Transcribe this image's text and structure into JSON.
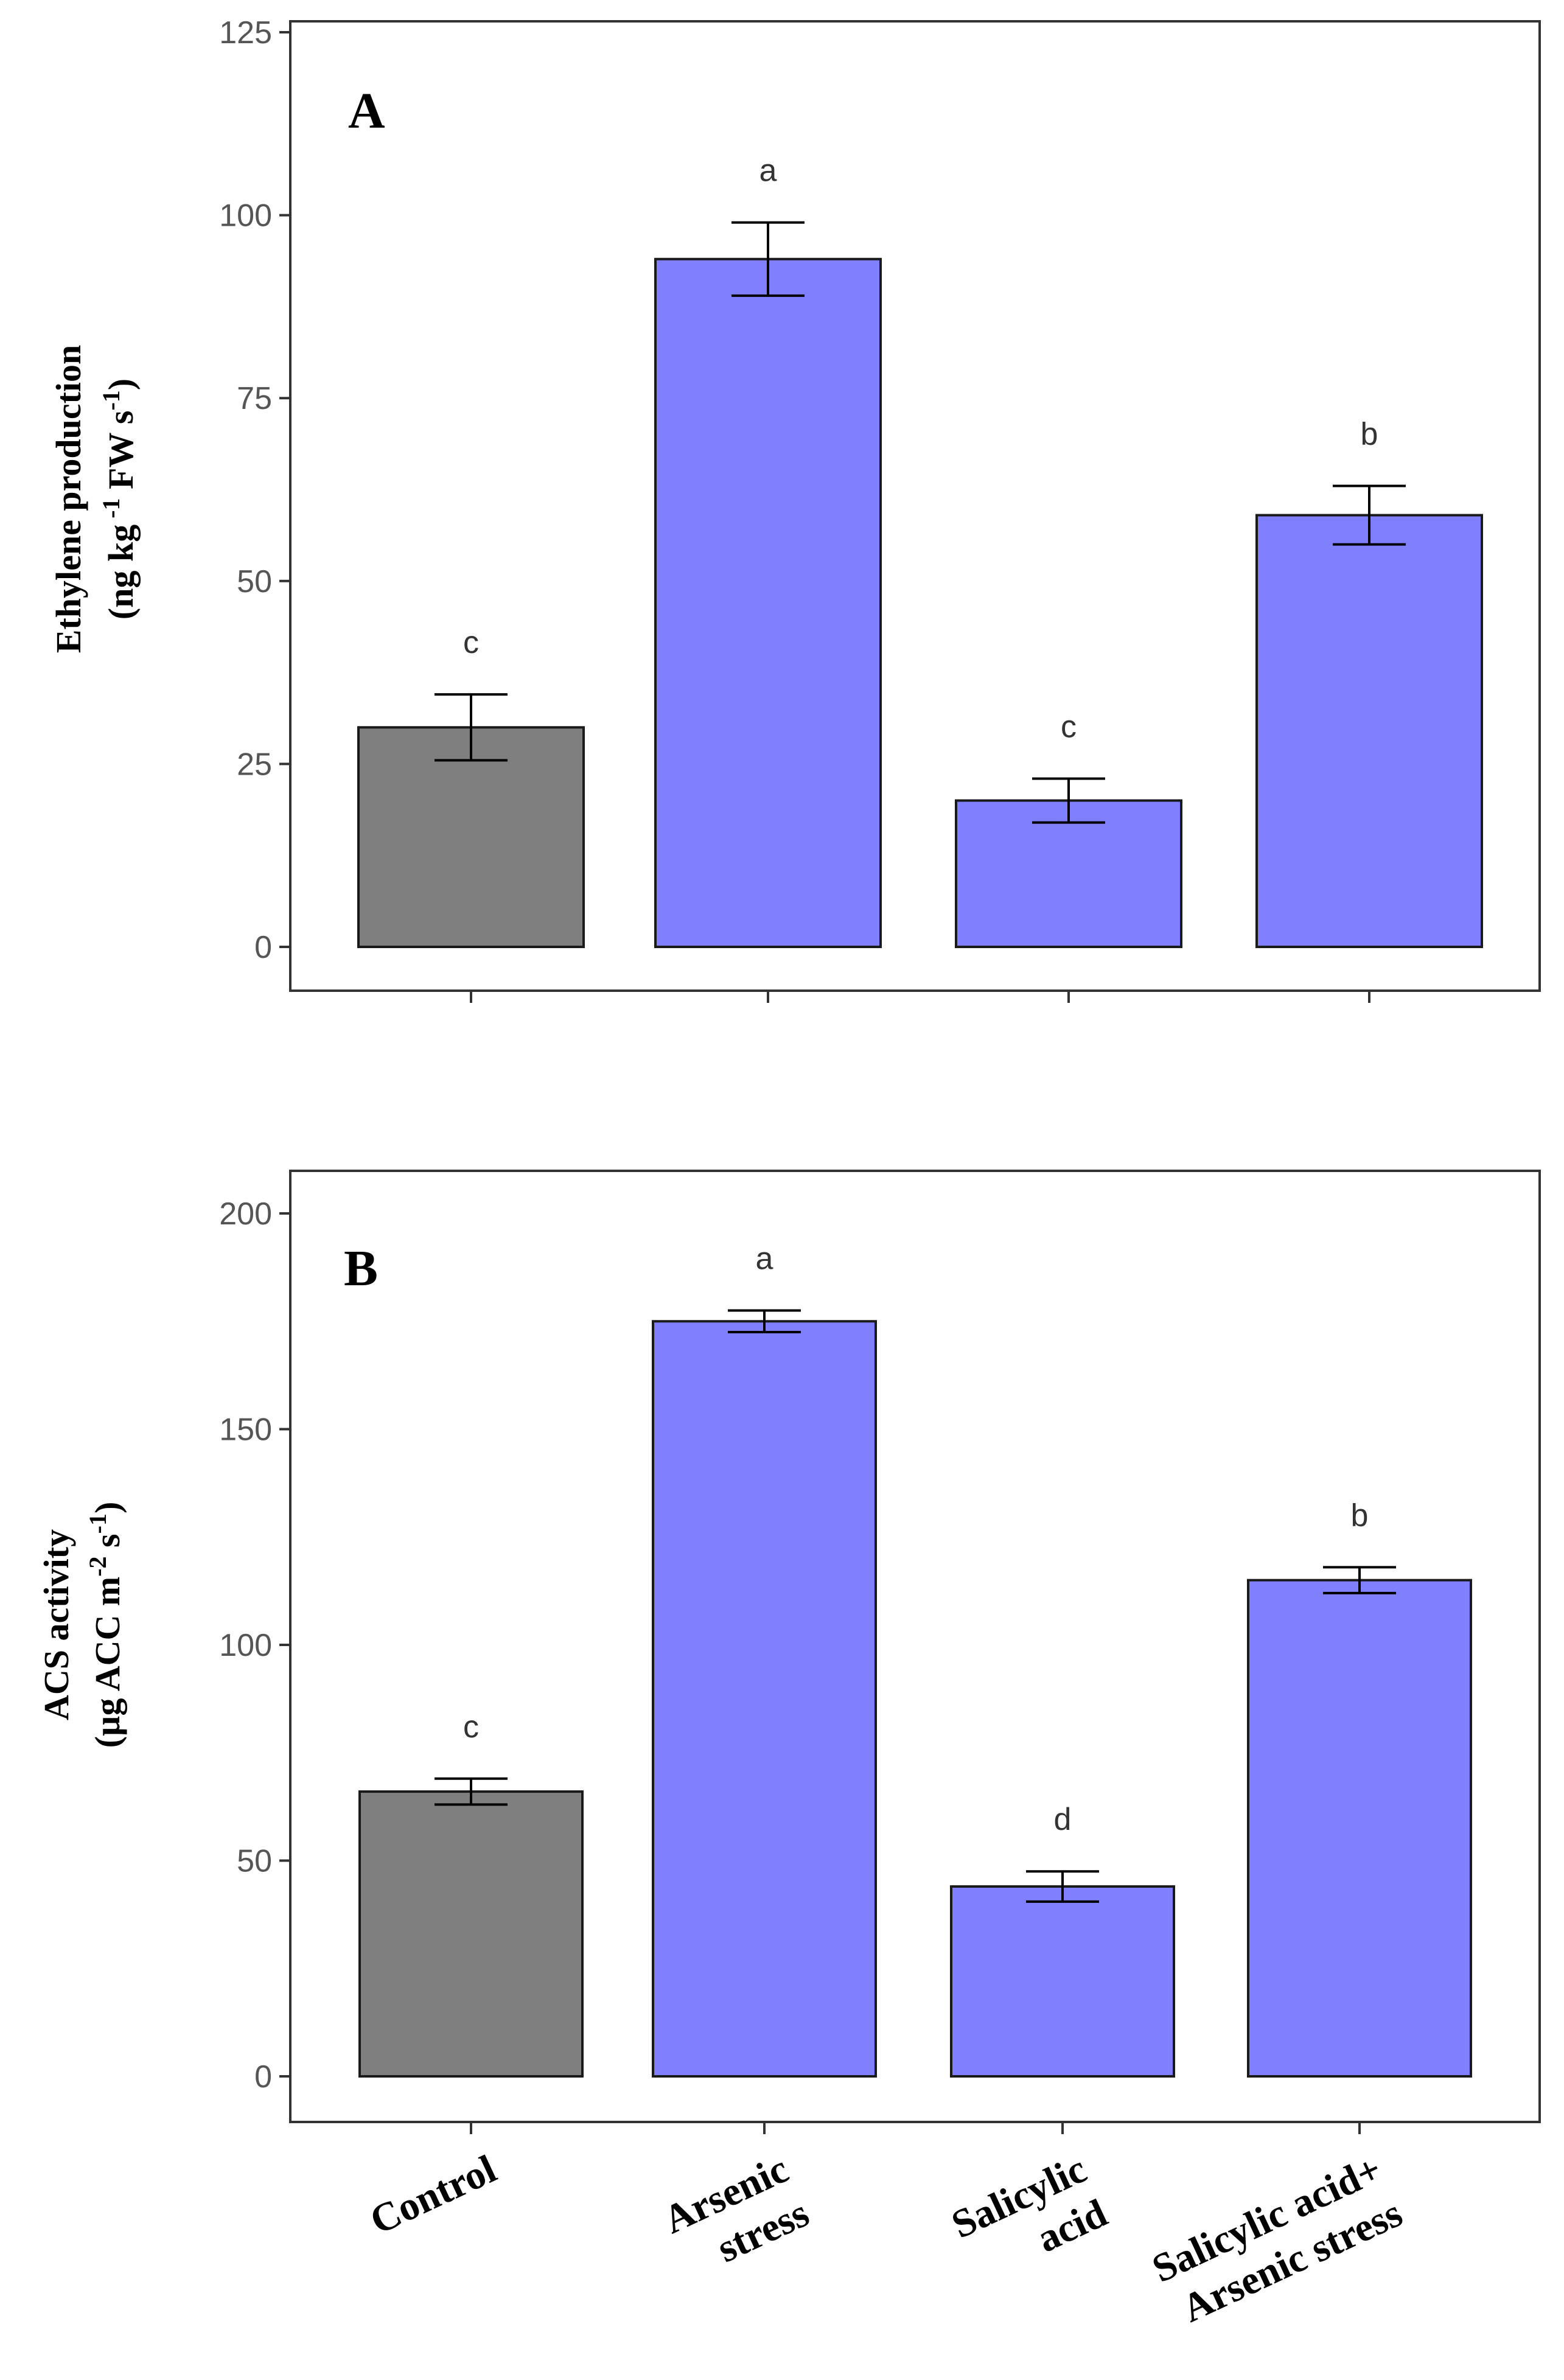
{
  "chart_data": [
    {
      "type": "bar",
      "panel": "A",
      "categories": [
        "Control",
        "Arsenic stress",
        "Salicylic acid",
        "Salicylic acid+ Arsenic stress"
      ],
      "values": [
        30,
        94,
        20,
        59
      ],
      "errors": [
        4.5,
        5,
        3,
        4
      ],
      "significance": [
        "c",
        "a",
        "c",
        "b"
      ],
      "colors": [
        "#7f7f7f",
        "#8080ff",
        "#8080ff",
        "#8080ff"
      ],
      "ylabel_line1": "Ethylene production",
      "ylabel_line2_prefix": "(ng kg",
      "ylabel_line2_sup1": " -1",
      "ylabel_line2_mid": " FW s",
      "ylabel_line2_sup2": "-1",
      "ylabel_line2_suffix": ")",
      "ylim": [
        0,
        125
      ],
      "yticks": [
        0,
        25,
        50,
        75,
        100,
        125
      ]
    },
    {
      "type": "bar",
      "panel": "B",
      "categories": [
        "Control",
        "Arsenic stress",
        "Salicylic acid",
        "Salicylic acid+ Arsenic stress"
      ],
      "values": [
        66,
        175,
        44,
        115
      ],
      "errors": [
        3,
        2.5,
        3.5,
        3
      ],
      "significance": [
        "c",
        "a",
        "d",
        "b"
      ],
      "colors": [
        "#7f7f7f",
        "#8080ff",
        "#8080ff",
        "#8080ff"
      ],
      "ylabel_line1": "ACS activity",
      "ylabel_line2_prefix": "(µg ACC m",
      "ylabel_line2_sup1": "-2",
      "ylabel_line2_mid": " s",
      "ylabel_line2_sup2": "-1",
      "ylabel_line2_suffix": ")",
      "ylim": [
        0,
        200
      ],
      "yticks": [
        0,
        50,
        100,
        150,
        200
      ]
    }
  ],
  "x_labels": [
    [
      "Control"
    ],
    [
      "Arsenic",
      "stress"
    ],
    [
      "Salicylic",
      "acid"
    ],
    [
      "Salicylic acid+",
      "Arsenic stress"
    ]
  ]
}
